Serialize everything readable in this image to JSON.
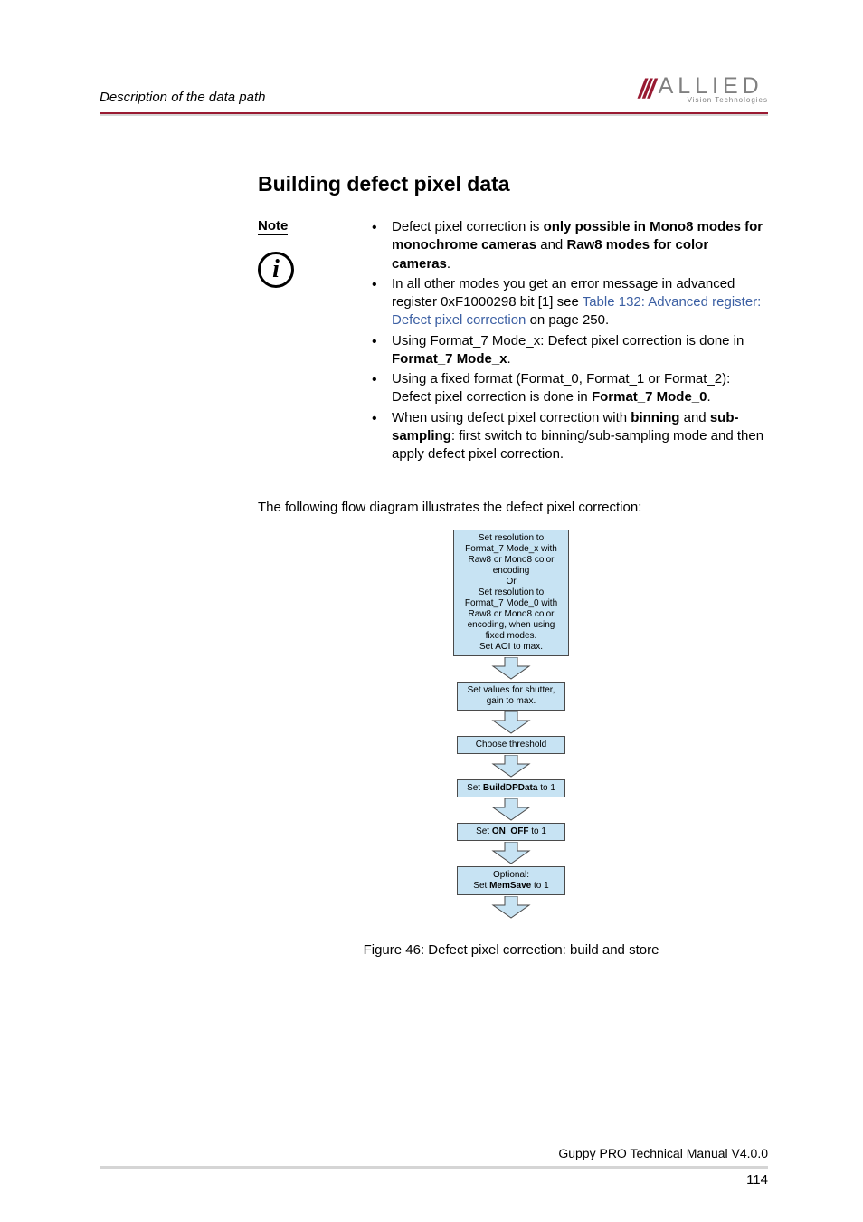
{
  "header": {
    "section_title": "Description of the data path",
    "logo_main": "ALLIED",
    "logo_sub": "Vision Technologies"
  },
  "heading": "Building defect pixel data",
  "note": {
    "label": "Note",
    "items": [
      {
        "pre": "Defect pixel correction is ",
        "bold1": "only possible in Mono8 modes for monochrome cameras",
        "mid1": " and ",
        "bold2": "Raw8 modes for color cameras",
        "post": "."
      },
      {
        "pre": "In all other modes you get an error message in advanced register 0xF1000298 bit [1] see ",
        "link": "Table 132: Advanced register: Defect pixel correction",
        "post": " on page 250."
      },
      {
        "pre": "Using Format_7 Mode_x: Defect pixel correction is done in ",
        "bold1": "Format_7 Mode_x",
        "post": "."
      },
      {
        "pre": "Using a fixed format (Format_0, Format_1 or Format_2): Defect pixel correction is done in ",
        "bold1": "Format_7 Mode_0",
        "post": "."
      },
      {
        "pre": "When using defect pixel correction with ",
        "bold1": "binning",
        "mid1": " and ",
        "bold2": "sub-sampling",
        "post": ": first switch to binning/sub-sampling mode and then apply defect pixel correction."
      }
    ]
  },
  "flow_intro": "The following flow diagram illustrates the defect pixel correction:",
  "flowchart": {
    "box_bg": "#c7e3f3",
    "box_border": "#4a4a4a",
    "arrow_fill": "#c7e3f3",
    "arrow_stroke": "#4a4a4a",
    "steps": [
      "Set resolution to Format_7 Mode_x with Raw8 or Mono8 color encoding\nOr\nSet resolution to Format_7 Mode_0 with Raw8 or Mono8 color encoding, when using fixed modes.\nSet AOI to max.",
      "Set values for shutter, gain to max.",
      "Choose threshold",
      "Set **BuildDPData** to 1",
      "Set **ON_OFF** to 1",
      "Optional:\nSet **MemSave** to 1"
    ]
  },
  "caption": "Figure 46: Defect pixel correction: build and store",
  "footer": {
    "line1": "Guppy PRO Technical Manual V4.0.0",
    "pagenum": "114"
  },
  "colors": {
    "accent": "#9a1a32",
    "link": "#3b5fa3",
    "grey": "#d5d5d5"
  }
}
